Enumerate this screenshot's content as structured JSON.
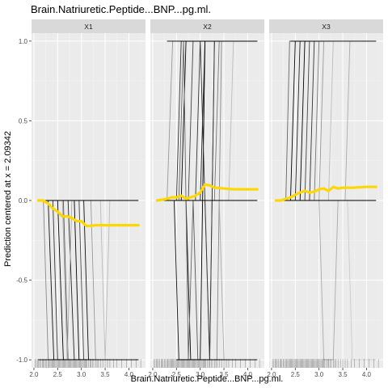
{
  "chart_data": {
    "type": "line",
    "title": "Brain.Natriuretic.Peptide...BNP...pg.ml.",
    "xlabel": "Brain.Natriuretic.Peptide...BNP...pg.ml.",
    "ylabel": "Prediction centered at x = 2.09342",
    "xlim": [
      1.95,
      4.35
    ],
    "ylim": [
      -1.05,
      1.05
    ],
    "x_ticks": [
      2.0,
      2.5,
      3.0,
      3.5,
      4.0
    ],
    "x_tick_labels": [
      "2.0",
      "2.5",
      "3.0",
      "3.5",
      "4.0"
    ],
    "y_ticks": [
      -1.0,
      -0.5,
      0.0,
      0.5,
      1.0
    ],
    "y_tick_labels": [
      "-1.0",
      "-0.5",
      "0.0",
      "0.5",
      "1.0"
    ],
    "grid": true,
    "panels": [
      {
        "strip": "X1",
        "ice_lines": [
          {
            "x": [
              2.09,
              2.2,
              2.3,
              4.2
            ],
            "y": [
              0,
              0,
              -1,
              -1
            ],
            "shade": "#888888"
          },
          {
            "x": [
              2.09,
              2.3,
              2.42,
              4.2
            ],
            "y": [
              0,
              0,
              -1,
              -1
            ],
            "shade": "#111111"
          },
          {
            "x": [
              2.09,
              2.4,
              2.5,
              4.2
            ],
            "y": [
              0,
              0,
              -1,
              -1
            ],
            "shade": "#333333"
          },
          {
            "x": [
              2.09,
              2.5,
              2.62,
              4.2
            ],
            "y": [
              0,
              0,
              -1,
              -1
            ],
            "shade": "#000000"
          },
          {
            "x": [
              2.09,
              2.62,
              2.72,
              4.2
            ],
            "y": [
              0,
              0,
              -1,
              -1
            ],
            "shade": "#555555"
          },
          {
            "x": [
              2.09,
              2.72,
              2.85,
              4.2
            ],
            "y": [
              0,
              0,
              -1,
              -1
            ],
            "shade": "#222222"
          },
          {
            "x": [
              2.09,
              2.85,
              2.95,
              4.2
            ],
            "y": [
              0,
              0,
              -1,
              -1
            ],
            "shade": "#000000"
          },
          {
            "x": [
              2.09,
              2.95,
              3.05,
              4.2
            ],
            "y": [
              0,
              0,
              -1,
              -1
            ],
            "shade": "#444444"
          },
          {
            "x": [
              2.09,
              3.05,
              3.15,
              4.2
            ],
            "y": [
              0,
              0,
              -1,
              -1
            ],
            "shade": "#111111"
          },
          {
            "x": [
              2.09,
              3.2,
              3.3,
              4.2
            ],
            "y": [
              0,
              0,
              -1,
              -1
            ],
            "shade": "#999999"
          },
          {
            "x": [
              2.09,
              3.4,
              3.5,
              3.6,
              4.2
            ],
            "y": [
              0,
              0,
              -1,
              0,
              0
            ],
            "shade": "#bbbbbb"
          },
          {
            "x": [
              2.09,
              2.6,
              2.7,
              2.8,
              4.2
            ],
            "y": [
              0,
              0,
              -1,
              0,
              0
            ],
            "shade": "#aaaaaa"
          },
          {
            "x": [
              2.09,
              4.2
            ],
            "y": [
              0,
              0
            ],
            "shade": "#000000"
          },
          {
            "x": [
              2.09,
              4.2
            ],
            "y": [
              -1,
              -1
            ],
            "shade": "#000000"
          }
        ],
        "pdp": {
          "x": [
            2.09,
            2.2,
            2.3,
            2.4,
            2.5,
            2.6,
            2.7,
            2.8,
            2.9,
            3.0,
            3.1,
            3.2,
            3.3,
            3.5,
            3.7,
            4.0,
            4.2
          ],
          "y": [
            0,
            0,
            -0.02,
            -0.05,
            -0.07,
            -0.1,
            -0.1,
            -0.11,
            -0.13,
            -0.13,
            -0.16,
            -0.16,
            -0.155,
            -0.155,
            -0.155,
            -0.155,
            -0.155
          ]
        }
      },
      {
        "strip": "X2",
        "ice_lines": [
          {
            "x": [
              2.09,
              2.3,
              2.42,
              4.2
            ],
            "y": [
              0,
              0,
              1,
              1
            ],
            "shade": "#999999"
          },
          {
            "x": [
              2.09,
              2.5,
              2.6,
              4.2
            ],
            "y": [
              0,
              0,
              1,
              1
            ],
            "shade": "#333333"
          },
          {
            "x": [
              2.09,
              2.6,
              2.7,
              4.2
            ],
            "y": [
              0,
              0,
              1,
              1
            ],
            "shade": "#000000"
          },
          {
            "x": [
              2.09,
              2.75,
              2.85,
              4.2
            ],
            "y": [
              0,
              0,
              1,
              1
            ],
            "shade": "#444444"
          },
          {
            "x": [
              2.09,
              3.0,
              3.1,
              4.2
            ],
            "y": [
              0,
              0,
              1,
              1
            ],
            "shade": "#222222"
          },
          {
            "x": [
              2.09,
              3.3,
              3.4,
              4.2
            ],
            "y": [
              0,
              0,
              1,
              1
            ],
            "shade": "#777777"
          },
          {
            "x": [
              2.09,
              3.6,
              3.7,
              4.2
            ],
            "y": [
              0,
              0,
              1,
              1
            ],
            "shade": "#bbbbbb"
          },
          {
            "x": [
              2.09,
              2.45,
              2.55,
              4.2
            ],
            "y": [
              0,
              0,
              -1,
              -1
            ],
            "shade": "#111111"
          },
          {
            "x": [
              2.09,
              2.7,
              2.8,
              3.0,
              3.1,
              4.2
            ],
            "y": [
              0,
              0,
              -1,
              -1,
              1,
              1
            ],
            "shade": "#000000"
          },
          {
            "x": [
              2.09,
              2.85,
              2.95,
              3.2,
              3.3,
              4.2
            ],
            "y": [
              0,
              0,
              -1,
              -1,
              1,
              1
            ],
            "shade": "#555555"
          },
          {
            "x": [
              2.09,
              3.1,
              3.2,
              3.35,
              3.45,
              4.2
            ],
            "y": [
              0,
              0,
              -1,
              -1,
              1,
              1
            ],
            "shade": "#888888"
          },
          {
            "x": [
              2.09,
              2.55,
              2.65,
              2.75,
              2.85,
              4.2
            ],
            "y": [
              0,
              0,
              1,
              -1,
              0,
              0
            ],
            "shade": "#666666"
          },
          {
            "x": [
              2.09,
              2.9,
              3.0,
              3.2,
              3.3,
              4.2
            ],
            "y": [
              0,
              0,
              1,
              -1,
              1,
              1
            ],
            "shade": "#333333"
          },
          {
            "x": [
              2.09,
              3.4,
              3.5,
              3.6,
              4.2
            ],
            "y": [
              0,
              0,
              -1,
              -1,
              -1
            ],
            "shade": "#aaaaaa"
          },
          {
            "x": [
              2.09,
              4.2
            ],
            "y": [
              0,
              0
            ],
            "shade": "#000000"
          },
          {
            "x": [
              2.3,
              4.2
            ],
            "y": [
              1,
              1
            ],
            "shade": "#000000"
          },
          {
            "x": [
              2.5,
              4.2
            ],
            "y": [
              -1,
              -1
            ],
            "shade": "#000000"
          }
        ],
        "pdp": {
          "x": [
            2.09,
            2.2,
            2.3,
            2.4,
            2.5,
            2.6,
            2.7,
            2.8,
            2.9,
            3.0,
            3.1,
            3.2,
            3.3,
            3.5,
            3.7,
            4.0,
            4.2
          ],
          "y": [
            0,
            0.005,
            0.01,
            0.02,
            0.02,
            0.03,
            0.01,
            0.02,
            0.03,
            0.05,
            0.1,
            0.095,
            0.08,
            0.075,
            0.07,
            0.07,
            0.07
          ]
        }
      },
      {
        "strip": "X3",
        "ice_lines": [
          {
            "x": [
              2.09,
              2.3,
              2.38,
              4.2
            ],
            "y": [
              0,
              0,
              1,
              1
            ],
            "shade": "#666666"
          },
          {
            "x": [
              2.09,
              2.4,
              2.5,
              4.2
            ],
            "y": [
              0,
              0,
              1,
              1
            ],
            "shade": "#000000"
          },
          {
            "x": [
              2.09,
              2.5,
              2.6,
              4.2
            ],
            "y": [
              0,
              0,
              1,
              1
            ],
            "shade": "#222222"
          },
          {
            "x": [
              2.09,
              2.6,
              2.7,
              4.2
            ],
            "y": [
              0,
              0,
              1,
              1
            ],
            "shade": "#000000"
          },
          {
            "x": [
              2.09,
              2.7,
              2.8,
              4.2
            ],
            "y": [
              0,
              0,
              1,
              1
            ],
            "shade": "#444444"
          },
          {
            "x": [
              2.09,
              2.8,
              2.9,
              4.2
            ],
            "y": [
              0,
              0,
              1,
              1
            ],
            "shade": "#333333"
          },
          {
            "x": [
              2.09,
              2.9,
              3.0,
              4.2
            ],
            "y": [
              0,
              0,
              1,
              1
            ],
            "shade": "#777777"
          },
          {
            "x": [
              2.09,
              3.0,
              3.1,
              4.2
            ],
            "y": [
              0,
              0,
              1,
              1
            ],
            "shade": "#999999"
          },
          {
            "x": [
              2.09,
              3.2,
              3.3,
              4.2
            ],
            "y": [
              0,
              0,
              1,
              1
            ],
            "shade": "#bbbbbb"
          },
          {
            "x": [
              2.09,
              3.55,
              3.65,
              4.2
            ],
            "y": [
              0,
              0,
              1,
              1
            ],
            "shade": "#aaaaaa"
          },
          {
            "x": [
              2.09,
              3.0,
              3.1,
              3.3,
              3.4,
              4.2
            ],
            "y": [
              0,
              0,
              -1,
              -1,
              0,
              0
            ],
            "shade": "#aaaaaa"
          },
          {
            "x": [
              2.09,
              3.6,
              3.7,
              4.2
            ],
            "y": [
              0,
              0,
              -1,
              -1
            ],
            "shade": "#cccccc"
          },
          {
            "x": [
              2.09,
              4.2
            ],
            "y": [
              0,
              0
            ],
            "shade": "#000000"
          },
          {
            "x": [
              2.4,
              4.2
            ],
            "y": [
              1,
              1
            ],
            "shade": "#000000"
          }
        ],
        "pdp": {
          "x": [
            2.09,
            2.2,
            2.3,
            2.4,
            2.5,
            2.6,
            2.7,
            2.8,
            2.9,
            3.0,
            3.1,
            3.2,
            3.3,
            3.4,
            3.5,
            3.7,
            4.0,
            4.2
          ],
          "y": [
            0,
            0,
            0.01,
            0.02,
            0.035,
            0.05,
            0.06,
            0.05,
            0.055,
            0.07,
            0.075,
            0.06,
            0.085,
            0.075,
            0.08,
            0.08,
            0.085,
            0.085
          ]
        }
      }
    ],
    "rug": [
      2.02,
      2.05,
      2.08,
      2.1,
      2.12,
      2.15,
      2.18,
      2.2,
      2.22,
      2.25,
      2.27,
      2.3,
      2.32,
      2.34,
      2.36,
      2.38,
      2.4,
      2.42,
      2.44,
      2.46,
      2.48,
      2.5,
      2.52,
      2.54,
      2.56,
      2.58,
      2.6,
      2.62,
      2.64,
      2.66,
      2.68,
      2.7,
      2.72,
      2.74,
      2.76,
      2.78,
      2.8,
      2.82,
      2.84,
      2.86,
      2.88,
      2.9,
      2.92,
      2.94,
      2.96,
      2.98,
      3.0,
      3.02,
      3.04,
      3.06,
      3.08,
      3.1,
      3.12,
      3.15,
      3.18,
      3.2,
      3.23,
      3.26,
      3.3,
      3.33,
      3.36,
      3.4,
      3.45,
      3.5,
      3.55,
      3.6,
      3.68,
      3.75,
      3.85,
      3.95,
      4.05,
      4.15,
      4.25
    ],
    "colors": {
      "panel_bg": "#ebebeb",
      "grid_major": "#ffffff",
      "strip_bg": "#d9d9d9",
      "pdp": "#ffd700",
      "rug": "#000000"
    }
  }
}
